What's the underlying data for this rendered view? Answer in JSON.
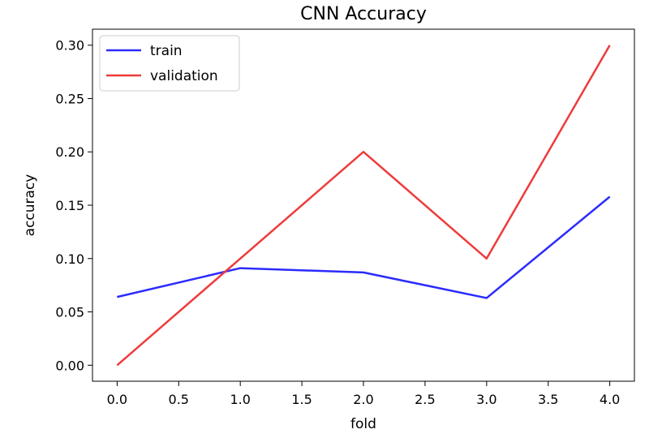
{
  "chart_data": {
    "type": "line",
    "title": "CNN Accuracy",
    "xlabel": "fold",
    "ylabel": "accuracy",
    "x": [
      0,
      1,
      2,
      3,
      4
    ],
    "xlim": [
      -0.2,
      4.2
    ],
    "ylim": [
      -0.015,
      0.315
    ],
    "xticks": [
      0.0,
      0.5,
      1.0,
      1.5,
      2.0,
      2.5,
      3.0,
      3.5,
      4.0
    ],
    "xtick_labels": [
      "0.0",
      "0.5",
      "1.0",
      "1.5",
      "2.0",
      "2.5",
      "3.0",
      "3.5",
      "4.0"
    ],
    "yticks": [
      0.0,
      0.05,
      0.1,
      0.15,
      0.2,
      0.25,
      0.3
    ],
    "ytick_labels": [
      "0.00",
      "0.05",
      "0.10",
      "0.15",
      "0.20",
      "0.25",
      "0.30"
    ],
    "grid": false,
    "legend": "top-left",
    "series": [
      {
        "name": "train",
        "color": "#2b2bff",
        "values": [
          0.064,
          0.091,
          0.087,
          0.063,
          0.158
        ]
      },
      {
        "name": "validation",
        "color": "#ee3b3b",
        "values": [
          0.0,
          0.1,
          0.2,
          0.1,
          0.3
        ]
      }
    ]
  }
}
